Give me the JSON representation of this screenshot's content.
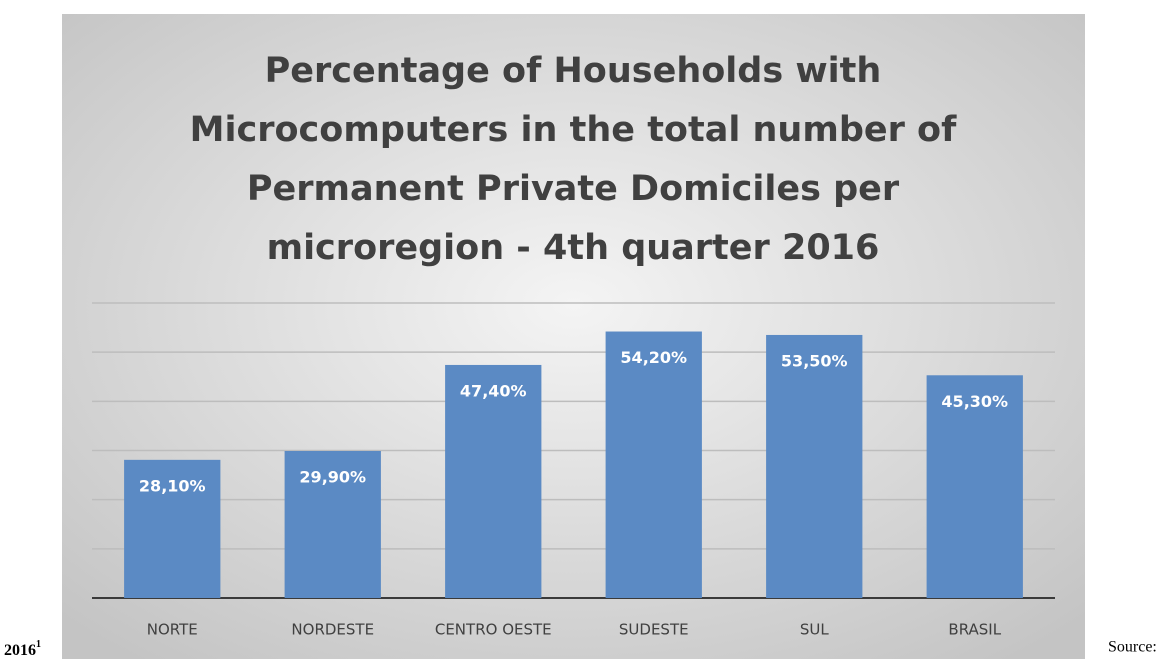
{
  "chart_data": {
    "type": "bar",
    "title": [
      "Percentage of Households with",
      "Microcomputers in the total number of",
      "Permanent Private Domiciles per",
      "microregion - 4th quarter 2016"
    ],
    "categories": [
      "NORTE",
      "NORDESTE",
      "CENTRO OESTE",
      "SUDESTE",
      "SUL",
      "BRASIL"
    ],
    "values": [
      28.1,
      29.9,
      47.4,
      54.2,
      53.5,
      45.3
    ],
    "value_labels": [
      "28,10%",
      "29,90%",
      "47,40%",
      "54,20%",
      "53,50%",
      "45,30%"
    ],
    "color": "#5b8ac4",
    "ylim": [
      0,
      60
    ],
    "yticks": [
      0,
      10,
      20,
      30,
      40,
      50,
      60
    ],
    "grid": true
  },
  "note": "2016",
  "note_sup": "1",
  "source": "Source:"
}
